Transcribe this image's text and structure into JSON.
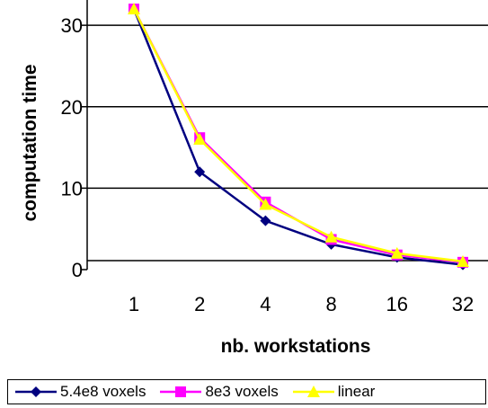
{
  "chart_data": {
    "type": "line",
    "xlabel": "nb. workstations",
    "ylabel": "computation time",
    "categories": [
      "1",
      "2",
      "4",
      "8",
      "16",
      "32"
    ],
    "ylim": [
      0,
      32
    ],
    "yticks": [
      0,
      10,
      20,
      30
    ],
    "grid": "horizontal",
    "legend_position": "bottom",
    "series": [
      {
        "name": "5.4e8 voxels",
        "values": [
          32,
          12,
          6,
          3.1,
          1.5,
          0.6
        ],
        "color": "#000080",
        "marker": "diamond"
      },
      {
        "name": "8e3 voxels",
        "values": [
          32,
          16.2,
          8.3,
          3.7,
          1.8,
          0.9
        ],
        "color": "#ff00ff",
        "marker": "square"
      },
      {
        "name": "linear",
        "values": [
          32,
          16,
          8,
          4,
          2,
          1
        ],
        "color": "#ffff00",
        "marker": "triangle"
      }
    ]
  }
}
